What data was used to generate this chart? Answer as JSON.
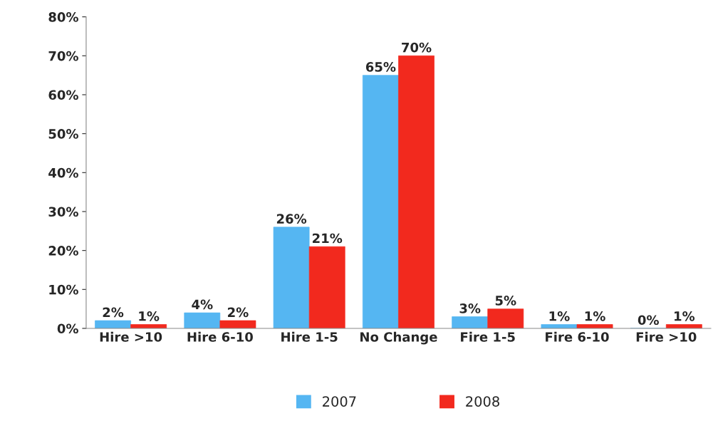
{
  "chart_data": {
    "type": "bar",
    "categories": [
      "Hire >10",
      "Hire 6-10",
      "Hire 1-5",
      "No Change",
      "Fire 1-5",
      "Fire 6-10",
      "Fire >10"
    ],
    "series": [
      {
        "name": "2007",
        "color": "#55b6f2",
        "values": [
          2,
          4,
          26,
          65,
          3,
          1,
          0
        ],
        "value_labels": [
          "2%",
          "4%",
          "26%",
          "65%",
          "3%",
          "1%",
          "0%"
        ]
      },
      {
        "name": "2008",
        "color": "#f2291e",
        "values": [
          1,
          2,
          21,
          70,
          5,
          1,
          1
        ],
        "value_labels": [
          "1%",
          "2%",
          "21%",
          "70%",
          "5%",
          "1%",
          "1%"
        ]
      }
    ],
    "ylim": [
      0,
      80
    ],
    "yticks": [
      {
        "value": 0,
        "label": "0%"
      },
      {
        "value": 10,
        "label": "10%"
      },
      {
        "value": 20,
        "label": "20%"
      },
      {
        "value": 30,
        "label": "30%"
      },
      {
        "value": 40,
        "label": "40%"
      },
      {
        "value": 50,
        "label": "50%"
      },
      {
        "value": 60,
        "label": "60%"
      },
      {
        "value": 70,
        "label": "70%"
      },
      {
        "value": 80,
        "label": "80%"
      }
    ],
    "grid": false,
    "legend": "bottom"
  }
}
